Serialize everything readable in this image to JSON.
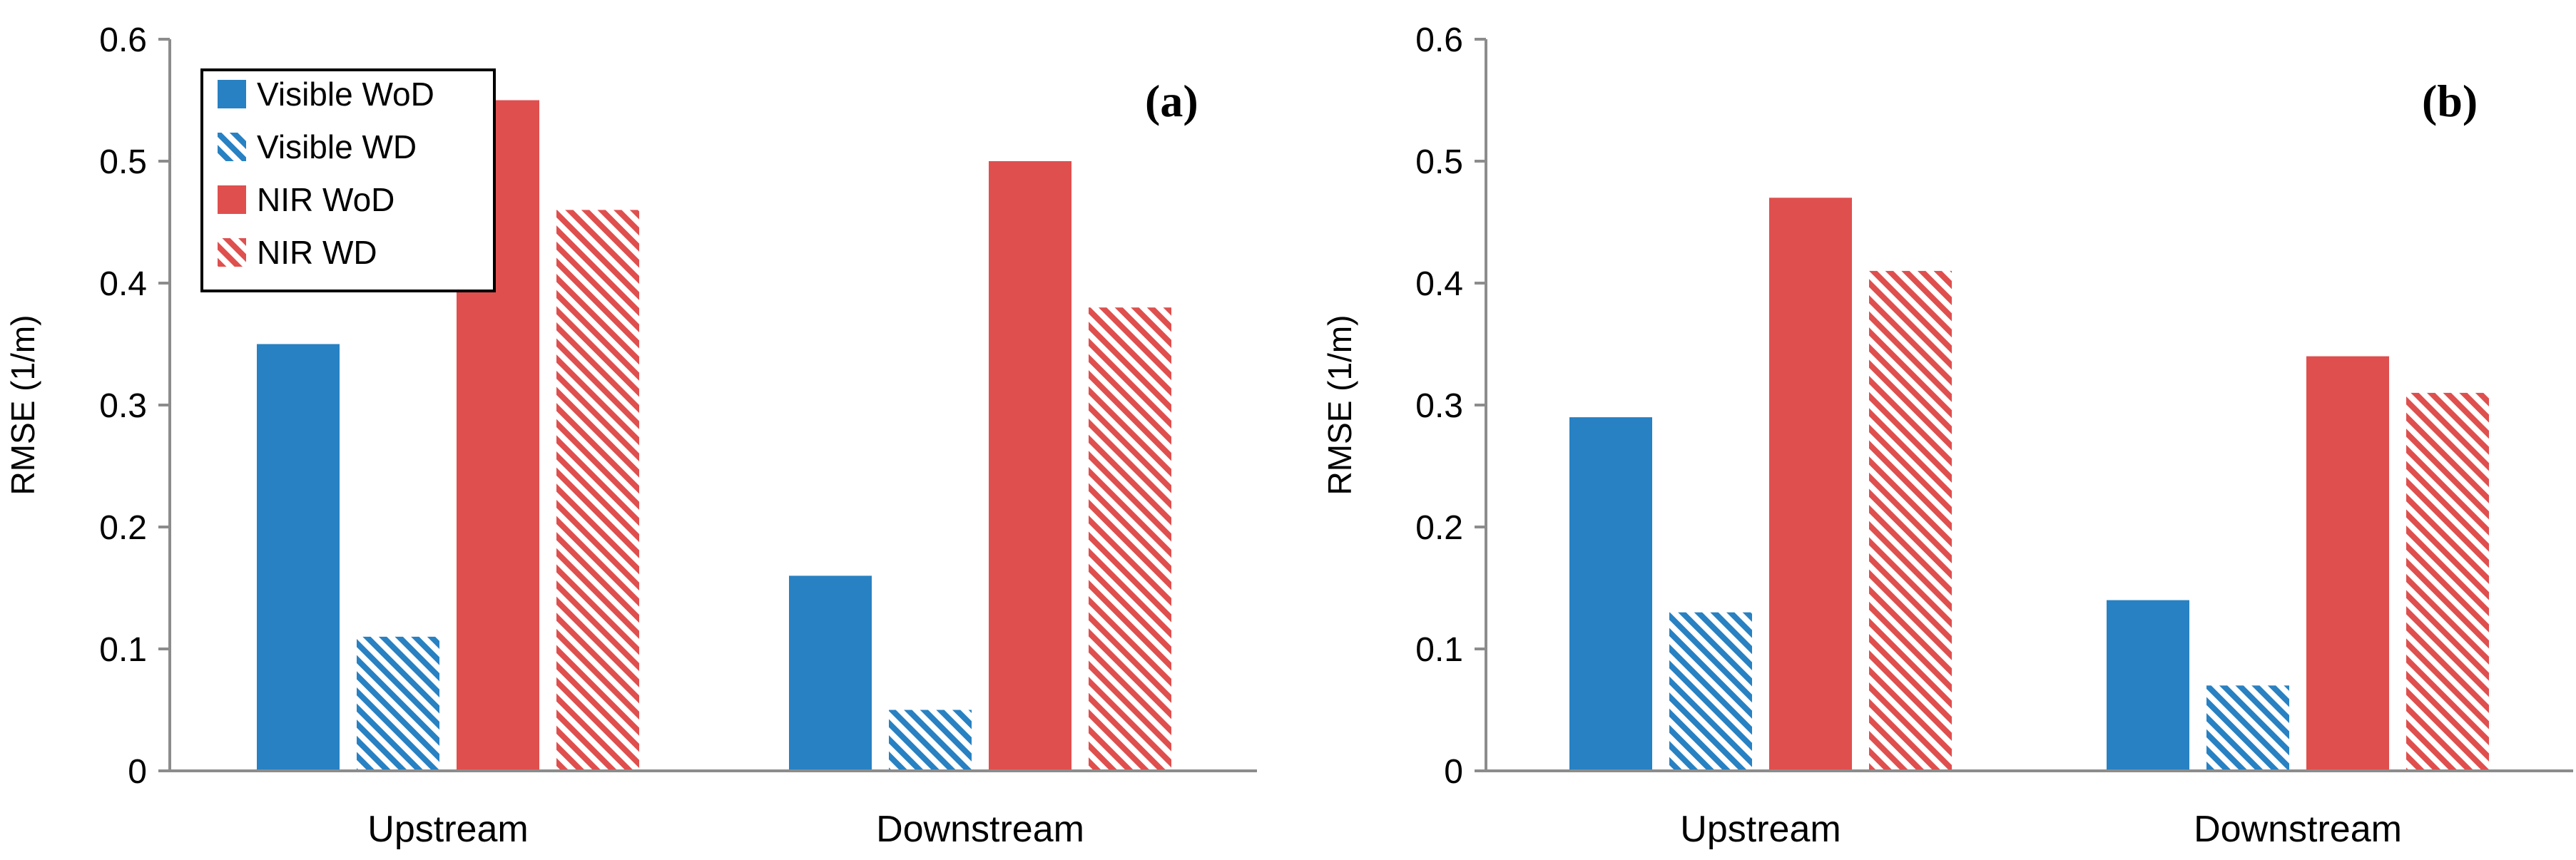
{
  "colors": {
    "visible": "#2881C2",
    "nir": "#DF4F4E",
    "axis": "#8C8C8C",
    "text": "#000000"
  },
  "legend": [
    {
      "label": "Visible WoD",
      "color": "#2881C2",
      "hatched": false
    },
    {
      "label": "Visible WD",
      "color": "#2881C2",
      "hatched": true
    },
    {
      "label": "NIR WoD",
      "color": "#DF4F4E",
      "hatched": false
    },
    {
      "label": "NIR WD",
      "color": "#DF4F4E",
      "hatched": true
    }
  ],
  "chart_data": [
    {
      "type": "bar",
      "panel_label": "(a)",
      "categories": [
        "Upstream",
        "Downstream"
      ],
      "series": [
        {
          "name": "Visible WoD",
          "values": [
            0.35,
            0.16
          ]
        },
        {
          "name": "Visible WD",
          "values": [
            0.11,
            0.05
          ]
        },
        {
          "name": "NIR WoD",
          "values": [
            0.55,
            0.5
          ]
        },
        {
          "name": "NIR WD",
          "values": [
            0.46,
            0.38
          ]
        }
      ],
      "ylabel": "RMSE (1/m)",
      "ylim": [
        0,
        0.6
      ],
      "yticks": [
        "0",
        "0.1",
        "0.2",
        "0.3",
        "0.4",
        "0.5",
        "0.6"
      ],
      "legend_position": "top-left",
      "grid": false
    },
    {
      "type": "bar",
      "panel_label": "(b)",
      "categories": [
        "Upstream",
        "Downstream"
      ],
      "series": [
        {
          "name": "Visible WoD",
          "values": [
            0.29,
            0.14
          ]
        },
        {
          "name": "Visible WD",
          "values": [
            0.13,
            0.07
          ]
        },
        {
          "name": "NIR WoD",
          "values": [
            0.47,
            0.34
          ]
        },
        {
          "name": "NIR WD",
          "values": [
            0.41,
            0.31
          ]
        }
      ],
      "ylabel": "RMSE (1/m)",
      "ylim": [
        0,
        0.6
      ],
      "yticks": [
        "0",
        "0.1",
        "0.2",
        "0.3",
        "0.4",
        "0.5",
        "0.6"
      ],
      "legend_position": "none",
      "grid": false
    }
  ]
}
